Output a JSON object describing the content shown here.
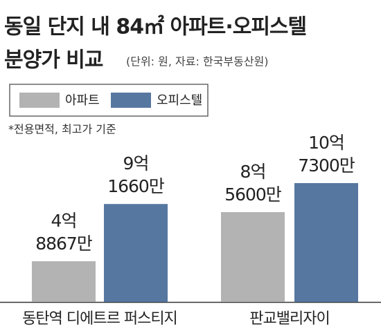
{
  "chart_data": {
    "type": "bar",
    "title": "동일 단지 내 84㎡ 아파트·오피스텔",
    "title_line2": "분양가 비교",
    "subtitle": "(단위: 원, 자료: 한국부동산원)",
    "note": "*전용면적, 최고가 기준",
    "categories": [
      "동탄역 디에트르 퍼스티지",
      "판교밸리자이"
    ],
    "series": [
      {
        "name": "아파트",
        "color": "#b3b3b3",
        "values": [
          488670000,
          856000000
        ],
        "value_labels": [
          [
            "4억",
            "8867만"
          ],
          [
            "8억",
            "5600만"
          ]
        ]
      },
      {
        "name": "오피스텔",
        "color": "#5677a0",
        "values": [
          916600000,
          1073000000
        ],
        "value_labels": [
          [
            "9억",
            "1660만"
          ],
          [
            "10억",
            "7300만"
          ]
        ]
      }
    ],
    "ylim": [
      184000000,
      1220000000
    ]
  }
}
